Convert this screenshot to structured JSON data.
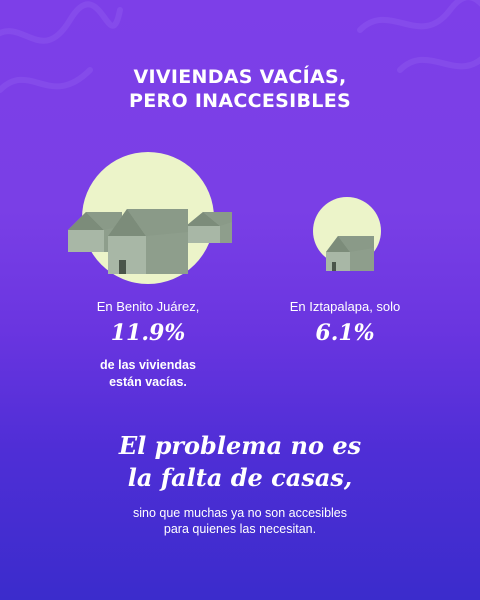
{
  "title": {
    "line1": "VIVIENDAS VACÍAS,",
    "line2": "PERO INACCESIBLES"
  },
  "colors": {
    "circle": "#ecf4c9",
    "house": "#9cac9a",
    "house_roof": "#7c8c7a",
    "background_top": "#7d3fe8",
    "background_bottom": "#3b2ccc"
  },
  "left_stat": {
    "caption": "En Benito Juárez,",
    "value": "11.9%",
    "sub_line1": "de las viviendas",
    "sub_line2": "están vacías."
  },
  "right_stat": {
    "caption": "En Iztapalapa, solo",
    "value": "6.1%"
  },
  "headline": {
    "line1": "El problema no es",
    "line2": "la falta de casas,"
  },
  "body": {
    "line1": "sino que muchas ya no son accesibles",
    "line2": "para quienes las necesitan."
  }
}
